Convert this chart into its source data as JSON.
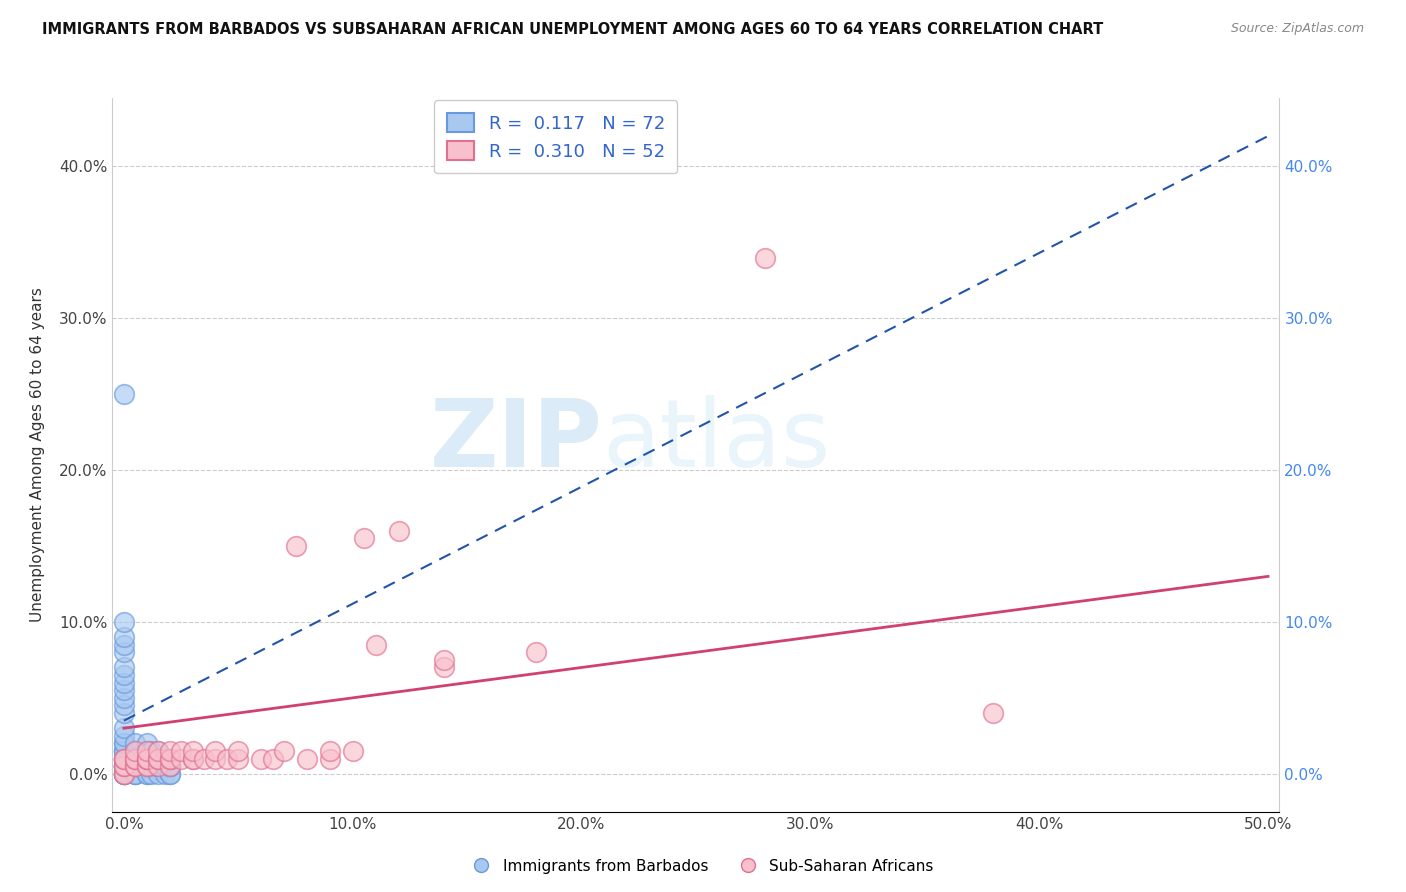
{
  "title": "IMMIGRANTS FROM BARBADOS VS SUBSAHARAN AFRICAN UNEMPLOYMENT AMONG AGES 60 TO 64 YEARS CORRELATION CHART",
  "source": "Source: ZipAtlas.com",
  "ylabel": "Unemployment Among Ages 60 to 64 years",
  "xlabel": "",
  "xlim": [
    -0.005,
    0.505
  ],
  "ylim": [
    -0.025,
    0.445
  ],
  "xticks": [
    0.0,
    0.1,
    0.2,
    0.3,
    0.4,
    0.5
  ],
  "yticks": [
    0.0,
    0.1,
    0.2,
    0.3,
    0.4
  ],
  "xticklabels": [
    "0.0%",
    "10.0%",
    "20.0%",
    "30.0%",
    "40.0%",
    "50.0%"
  ],
  "yticklabels": [
    "0.0%",
    "10.0%",
    "20.0%",
    "30.0%",
    "40.0%"
  ],
  "right_yticklabels": [
    "0.0%",
    "10.0%",
    "20.0%",
    "30.0%",
    "40.0%"
  ],
  "blue_R": 0.117,
  "blue_N": 72,
  "pink_R": 0.31,
  "pink_N": 52,
  "blue_color": "#A8C8F0",
  "blue_edge_color": "#6699DD",
  "blue_line_color": "#2255AA",
  "pink_color": "#F8C0CC",
  "pink_edge_color": "#E07090",
  "pink_line_color": "#D04070",
  "legend_label_blue": "Immigrants from Barbados",
  "legend_label_pink": "Sub-Saharan Africans",
  "watermark_zip": "ZIP",
  "watermark_atlas": "atlas",
  "background_color": "#ffffff",
  "grid_color": "#cccccc",
  "blue_x": [
    0.0,
    0.0,
    0.0,
    0.0,
    0.0,
    0.0,
    0.0,
    0.0,
    0.0,
    0.0,
    0.0,
    0.0,
    0.0,
    0.0,
    0.0,
    0.0,
    0.0,
    0.0,
    0.0,
    0.0,
    0.0,
    0.0,
    0.0,
    0.0,
    0.0,
    0.0,
    0.0,
    0.0,
    0.0,
    0.0,
    0.0,
    0.0,
    0.0,
    0.005,
    0.005,
    0.005,
    0.005,
    0.005,
    0.005,
    0.005,
    0.005,
    0.005,
    0.005,
    0.005,
    0.01,
    0.01,
    0.01,
    0.01,
    0.01,
    0.01,
    0.01,
    0.01,
    0.01,
    0.012,
    0.012,
    0.012,
    0.012,
    0.012,
    0.015,
    0.015,
    0.015,
    0.015,
    0.015,
    0.015,
    0.018,
    0.018,
    0.018,
    0.02,
    0.02,
    0.02,
    0.02,
    0.02
  ],
  "blue_y": [
    0.0,
    0.0,
    0.0,
    0.0,
    0.005,
    0.005,
    0.005,
    0.005,
    0.005,
    0.01,
    0.01,
    0.01,
    0.01,
    0.01,
    0.015,
    0.015,
    0.015,
    0.02,
    0.02,
    0.025,
    0.03,
    0.04,
    0.045,
    0.05,
    0.055,
    0.06,
    0.065,
    0.07,
    0.08,
    0.085,
    0.09,
    0.1,
    0.25,
    0.0,
    0.0,
    0.0,
    0.005,
    0.005,
    0.01,
    0.01,
    0.01,
    0.015,
    0.015,
    0.02,
    0.0,
    0.0,
    0.005,
    0.005,
    0.01,
    0.01,
    0.015,
    0.015,
    0.02,
    0.0,
    0.005,
    0.005,
    0.01,
    0.015,
    0.0,
    0.005,
    0.005,
    0.01,
    0.01,
    0.015,
    0.0,
    0.005,
    0.01,
    0.0,
    0.0,
    0.005,
    0.005,
    0.01
  ],
  "pink_x": [
    0.0,
    0.0,
    0.0,
    0.0,
    0.0,
    0.0,
    0.005,
    0.005,
    0.005,
    0.005,
    0.005,
    0.01,
    0.01,
    0.01,
    0.01,
    0.01,
    0.01,
    0.015,
    0.015,
    0.015,
    0.015,
    0.02,
    0.02,
    0.02,
    0.02,
    0.025,
    0.025,
    0.03,
    0.03,
    0.03,
    0.035,
    0.04,
    0.04,
    0.045,
    0.05,
    0.05,
    0.06,
    0.065,
    0.07,
    0.075,
    0.08,
    0.09,
    0.09,
    0.1,
    0.105,
    0.11,
    0.12,
    0.14,
    0.14,
    0.18,
    0.28,
    0.38
  ],
  "pink_y": [
    0.0,
    0.0,
    0.005,
    0.005,
    0.01,
    0.01,
    0.005,
    0.005,
    0.01,
    0.01,
    0.015,
    0.005,
    0.005,
    0.01,
    0.01,
    0.01,
    0.015,
    0.005,
    0.01,
    0.01,
    0.015,
    0.005,
    0.01,
    0.01,
    0.015,
    0.01,
    0.015,
    0.01,
    0.01,
    0.015,
    0.01,
    0.01,
    0.015,
    0.01,
    0.01,
    0.015,
    0.01,
    0.01,
    0.015,
    0.15,
    0.01,
    0.01,
    0.015,
    0.015,
    0.155,
    0.085,
    0.16,
    0.07,
    0.075,
    0.08,
    0.34,
    0.04
  ],
  "blue_line_x0": 0.0,
  "blue_line_y0": 0.035,
  "blue_line_x1": 0.5,
  "blue_line_y1": 0.42,
  "pink_line_x0": 0.0,
  "pink_line_y0": 0.03,
  "pink_line_x1": 0.5,
  "pink_line_y1": 0.13
}
